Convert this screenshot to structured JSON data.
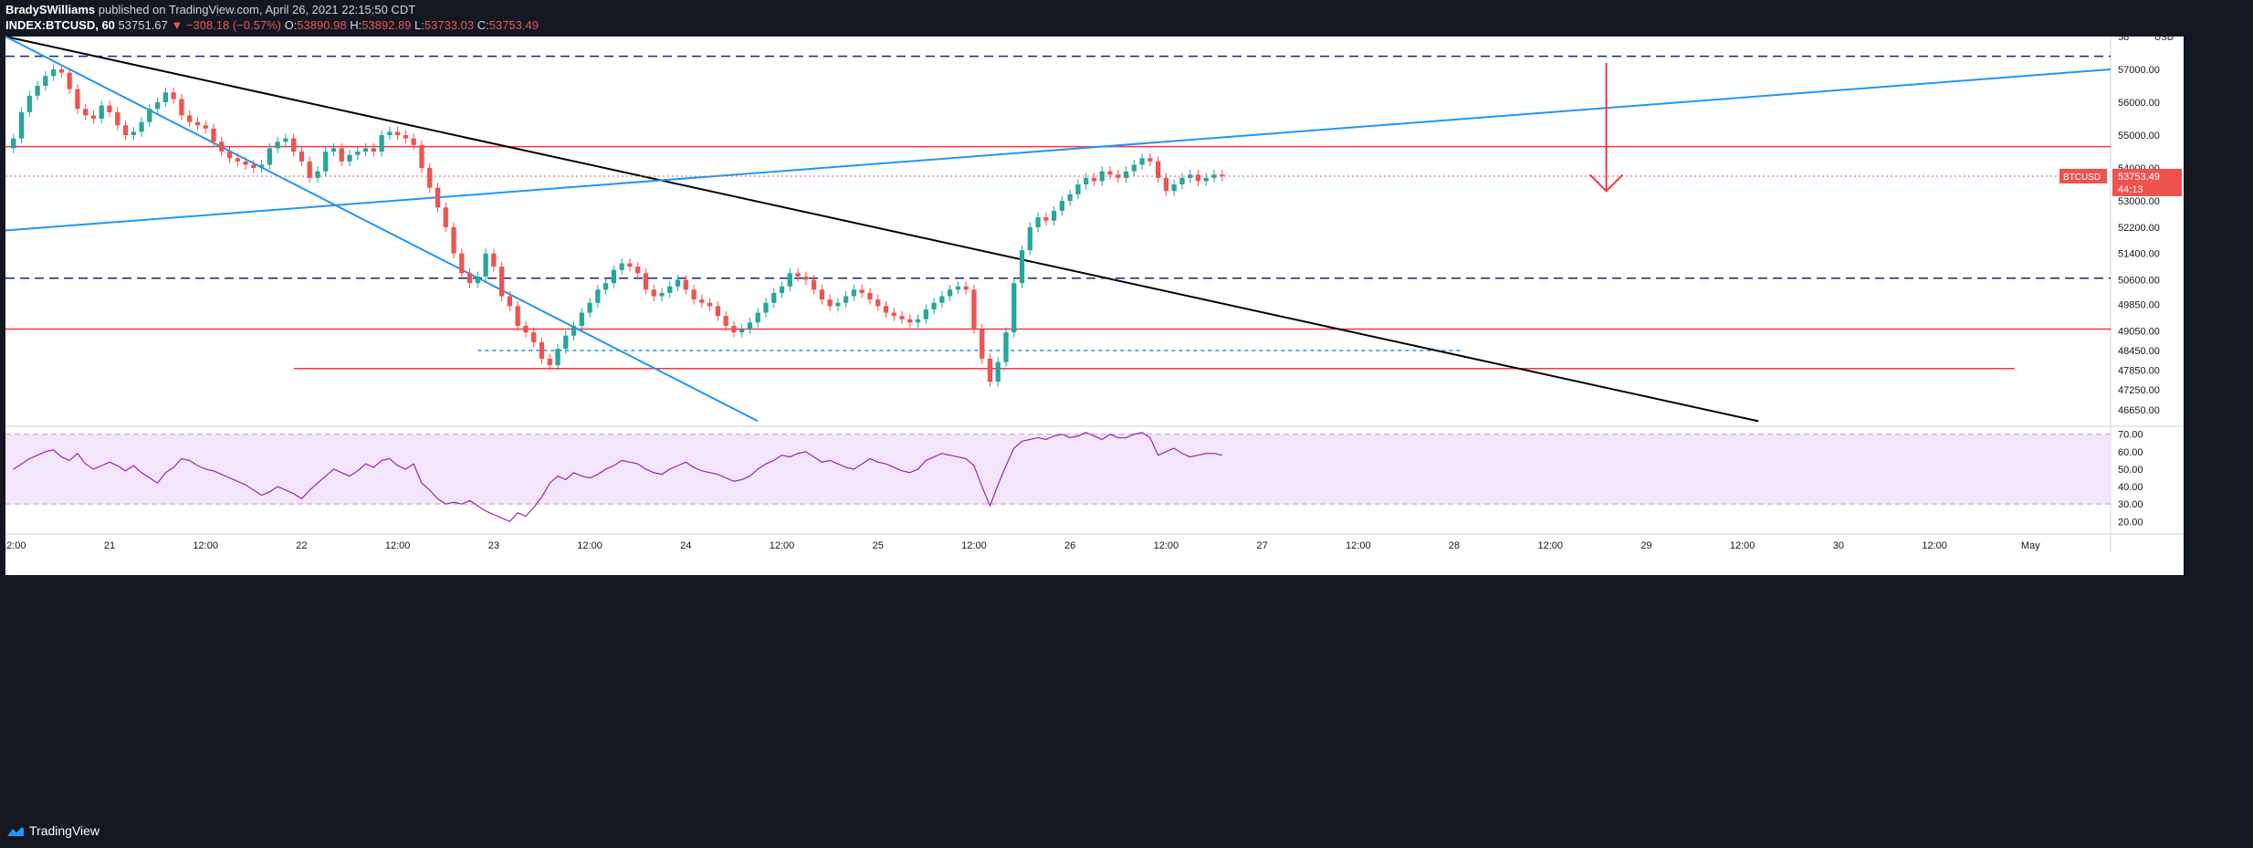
{
  "header": {
    "author": "BradySWilliams",
    "published": "published on TradingView.com, April 26, 2021 22:15:50 CDT",
    "symbol": "INDEX:BTCUSD, 60",
    "last": "53751.67",
    "change": "▼ −308.18 (−0.57%)",
    "o_label": "O:",
    "o_value": "53890.98",
    "h_label": "H:",
    "h_value": "53892.89",
    "l_label": "L:",
    "l_value": "53733.03",
    "c_label": "C:",
    "c_value": "53753.49"
  },
  "footer": {
    "brand": "TradingView"
  },
  "colors": {
    "bg": "#131722",
    "plot_bg": "#ffffff",
    "axis_text": "#131722",
    "up": "#26a69a",
    "down": "#ef5350",
    "blue": "#2196f3",
    "red_line": "#f23645",
    "dash": "#1a237e",
    "black": "#000000",
    "rsi": "#9c27b0",
    "rsi_fill": "#f3e5fb"
  },
  "chart_data": {
    "type": "candlestick",
    "title": "INDEX:BTCUSD, 60",
    "currency": "USD",
    "ylim": [
      46200,
      58000
    ],
    "price_ticks": [
      57000,
      56000,
      55000,
      54000,
      53000,
      52200,
      51400,
      50600,
      49850,
      49050,
      48450,
      47850,
      47250,
      46650
    ],
    "price_tick_labels": [
      "57000.00",
      "56000.00",
      "55000.00",
      "54000.00",
      "53000.00",
      "52200.00",
      "51400.00",
      "50600.00",
      "49850.00",
      "49050.00",
      "48450.00",
      "47850.00",
      "47250.00",
      "46650.00"
    ],
    "top_partial_label": "58",
    "x_ticks": [
      {
        "t": 0,
        "label": "12:00"
      },
      {
        "t": 12,
        "label": "21"
      },
      {
        "t": 24,
        "label": "12:00"
      },
      {
        "t": 36,
        "label": "22"
      },
      {
        "t": 48,
        "label": "12:00"
      },
      {
        "t": 60,
        "label": "23"
      },
      {
        "t": 72,
        "label": "12:00"
      },
      {
        "t": 84,
        "label": "24"
      },
      {
        "t": 96,
        "label": "12:00"
      },
      {
        "t": 108,
        "label": "25"
      },
      {
        "t": 120,
        "label": "12:00"
      },
      {
        "t": 132,
        "label": "26"
      },
      {
        "t": 144,
        "label": "12:00"
      },
      {
        "t": 156,
        "label": "27"
      },
      {
        "t": 168,
        "label": "12:00"
      },
      {
        "t": 180,
        "label": "28"
      },
      {
        "t": 192,
        "label": "12:00"
      },
      {
        "t": 204,
        "label": "29"
      },
      {
        "t": 216,
        "label": "12:00"
      },
      {
        "t": 228,
        "label": "30"
      },
      {
        "t": 240,
        "label": "12:00"
      },
      {
        "t": 252,
        "label": "May"
      }
    ],
    "x_range": [
      -1,
      262
    ],
    "close": [
      54900,
      55700,
      56200,
      56500,
      56800,
      57000,
      56900,
      56400,
      55800,
      55600,
      55500,
      55900,
      55700,
      55300,
      55000,
      55100,
      55400,
      55800,
      56000,
      56300,
      56100,
      55600,
      55400,
      55300,
      55200,
      54800,
      54500,
      54300,
      54200,
      54100,
      54000,
      54100,
      54600,
      54800,
      54900,
      54500,
      54200,
      53700,
      53900,
      54500,
      54600,
      54200,
      54400,
      54500,
      54600,
      54500,
      55000,
      55100,
      55000,
      54900,
      54700,
      54000,
      53400,
      52800,
      52200,
      51400,
      50800,
      50500,
      50700,
      51400,
      51000,
      50100,
      49800,
      49200,
      49000,
      48700,
      48200,
      48000,
      48500,
      48900,
      49200,
      49600,
      49900,
      50300,
      50500,
      50900,
      51100,
      51000,
      50800,
      50300,
      50100,
      50200,
      50400,
      50600,
      50300,
      50000,
      49900,
      49800,
      49500,
      49200,
      49000,
      49100,
      49300,
      49600,
      49900,
      50200,
      50400,
      50800,
      50700,
      50600,
      50300,
      50000,
      49800,
      49900,
      50100,
      50300,
      50200,
      50000,
      49800,
      49600,
      49500,
      49400,
      49300,
      49400,
      49700,
      49900,
      50100,
      50300,
      50400,
      50300,
      49100,
      48200,
      47500,
      48100,
      49000,
      50500,
      51500,
      52200,
      52500,
      52400,
      52700,
      53000,
      53200,
      53500,
      53700,
      53600,
      53900,
      53800,
      53700,
      53900,
      54100,
      54300,
      54200,
      53700,
      53300,
      53500,
      53700,
      53800,
      53600,
      53700,
      53800,
      53753
    ],
    "open_note": "each candle opens at the previous close (first opens at 54600)",
    "last_price": {
      "value": 53753.49,
      "label": "53753.49",
      "countdown": "44:13",
      "symbol_tag": "BTCUSD"
    },
    "horizontal_lines": [
      {
        "price": 57400,
        "style": "dashed",
        "color": "dash"
      },
      {
        "price": 54650,
        "style": "solid",
        "color": "red_line"
      },
      {
        "price": 50650,
        "style": "dashed",
        "color": "dash"
      },
      {
        "price": 49100,
        "style": "solid",
        "color": "red_line"
      },
      {
        "price": 47900,
        "style": "solid",
        "color": "red_line",
        "t0": 35,
        "t1": 250
      },
      {
        "price": 48450,
        "style": "dotted",
        "color": "blue",
        "t0": 58,
        "t1": 181
      }
    ],
    "trend_lines": [
      {
        "name": "black-downtrend",
        "t0": -1,
        "p0": 58000,
        "t1": 218,
        "p1": 46300,
        "color": "black"
      },
      {
        "name": "blue-uptrend",
        "t0": -1,
        "p0": 52100,
        "t1": 262,
        "p1": 57000,
        "color": "blue"
      },
      {
        "name": "blue-downtrend",
        "t0": -1,
        "p0": 58000,
        "t1": 93,
        "p1": 46300,
        "color": "blue"
      }
    ],
    "arrow": {
      "t": 199,
      "from": 57200,
      "to": 53300,
      "color": "red_line"
    },
    "rsi": {
      "ylim": [
        17,
        73
      ],
      "band": [
        30,
        70
      ],
      "ticks": [
        70,
        60,
        50,
        40,
        30,
        20
      ],
      "tick_labels": [
        "70.00",
        "60.00",
        "50.00",
        "40.00",
        "30.00",
        "20.00"
      ],
      "values": [
        50,
        53,
        56,
        58,
        60,
        61,
        57,
        55,
        59,
        53,
        50,
        52,
        54,
        52,
        49,
        52,
        48,
        45,
        42,
        48,
        51,
        56,
        55,
        52,
        50,
        49,
        47,
        45,
        43,
        41,
        38,
        35,
        37,
        40,
        38,
        36,
        33,
        38,
        42,
        46,
        50,
        48,
        46,
        49,
        53,
        51,
        55,
        56,
        52,
        50,
        53,
        42,
        38,
        33,
        30,
        31,
        30,
        32,
        29,
        26,
        24,
        22,
        20,
        25,
        23,
        28,
        34,
        42,
        46,
        44,
        48,
        46,
        45,
        47,
        50,
        52,
        55,
        54,
        53,
        50,
        48,
        47,
        50,
        52,
        54,
        51,
        49,
        48,
        47,
        45,
        43,
        44,
        46,
        50,
        53,
        55,
        58,
        57,
        59,
        60,
        57,
        54,
        55,
        53,
        51,
        50,
        53,
        56,
        54,
        53,
        51,
        49,
        48,
        50,
        55,
        57,
        59,
        58,
        57,
        56,
        52,
        40,
        29,
        41,
        52,
        62,
        66,
        67,
        68,
        67,
        69,
        70,
        68,
        69,
        71,
        69,
        67,
        70,
        68,
        68,
        70,
        71,
        68,
        58,
        60,
        62,
        59,
        57,
        58,
        59,
        59,
        58
      ]
    }
  }
}
